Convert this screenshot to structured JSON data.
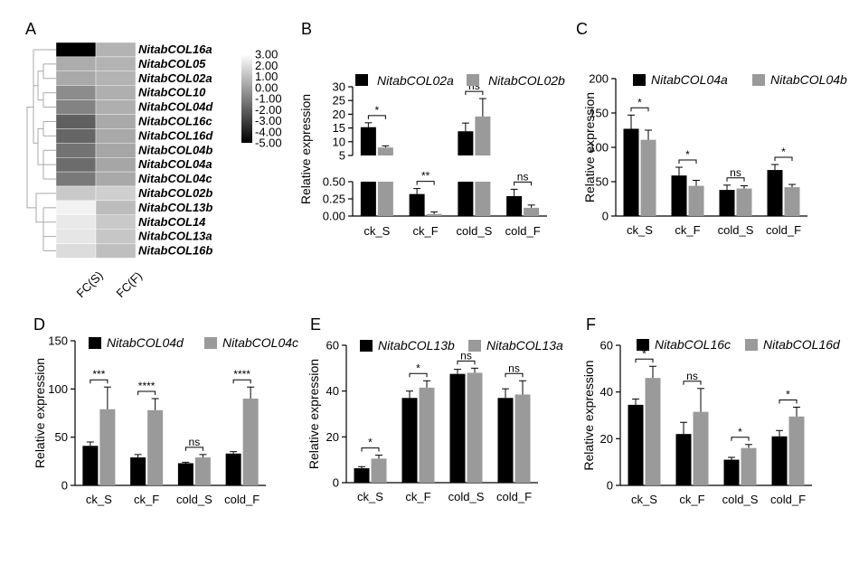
{
  "panel_labels": [
    "A",
    "B",
    "C",
    "D",
    "E",
    "F"
  ],
  "colors": {
    "series_a": "#000000",
    "series_b": "#9a9a9b",
    "axis": "#000000"
  },
  "chart_data": [
    {
      "panel": "A",
      "type": "heatmap",
      "rows": [
        "NitabCOL16a",
        "NitabCOL05",
        "NitabCOL02a",
        "NitabCOL10",
        "NitabCOL04d",
        "NitabCOL16c",
        "NitabCOL16d",
        "NitabCOL04b",
        "NitabCOL04a",
        "NitabCOL04c",
        "NitabCOL02b",
        "NitabCOL13b",
        "NitabCOL14",
        "NitabCOL13a",
        "NitabCOL16b"
      ],
      "columns": [
        "FC(S)",
        "FC(F)"
      ],
      "values": [
        [
          -5.0,
          0.6
        ],
        [
          0.4,
          0.6
        ],
        [
          0.3,
          0.6
        ],
        [
          -0.6,
          0.5
        ],
        [
          -0.9,
          0.5
        ],
        [
          -2.0,
          0.3
        ],
        [
          -1.8,
          0.3
        ],
        [
          -1.4,
          0.2
        ],
        [
          -1.6,
          0.2
        ],
        [
          -1.2,
          0.3
        ],
        [
          1.3,
          1.5
        ],
        [
          2.6,
          0.9
        ],
        [
          2.3,
          1.3
        ],
        [
          2.2,
          1.2
        ],
        [
          1.9,
          1.0
        ]
      ],
      "colorbar_ticks": [
        "3.00",
        "2.00",
        "1.00",
        "0.00",
        "-1.00",
        "-2.00",
        "-3.00",
        "-4.00",
        "-5.00"
      ],
      "color_range": [
        -5.0,
        3.0
      ]
    },
    {
      "panel": "B",
      "type": "bar",
      "categories": [
        "ck_S",
        "ck_F",
        "cold_S",
        "cold_F"
      ],
      "series": [
        {
          "name": "NitabCOL02a",
          "values": [
            15.3,
            0.32,
            13.8,
            0.29
          ],
          "errors": [
            1.6,
            0.08,
            3.0,
            0.1
          ]
        },
        {
          "name": "NitabCOL02b",
          "values": [
            7.9,
            0.03,
            19.2,
            0.12
          ],
          "errors": [
            0.6,
            0.03,
            6.5,
            0.04
          ]
        }
      ],
      "ylabel": "Relative expression",
      "broken_axis": {
        "lower": [
          0,
          0.5
        ],
        "upper": [
          5,
          30
        ]
      },
      "yticks_lower": [
        "0.00",
        "0.25",
        "0.50"
      ],
      "yticks_upper": [
        "5",
        "10",
        "15",
        "20",
        "25",
        "30"
      ],
      "significance": [
        "*",
        "**",
        "ns",
        "ns"
      ]
    },
    {
      "panel": "C",
      "type": "bar",
      "categories": [
        "ck_S",
        "ck_F",
        "cold_S",
        "cold_F"
      ],
      "series": [
        {
          "name": "NitabCOL04a",
          "values": [
            127,
            59,
            38,
            67
          ],
          "errors": [
            20,
            12,
            7,
            8
          ]
        },
        {
          "name": "NitabCOL04b",
          "values": [
            111,
            44,
            40,
            42
          ],
          "errors": [
            14,
            8,
            4,
            4
          ]
        }
      ],
      "ylabel": "Relative expression",
      "ylim": [
        0,
        200
      ],
      "yticks": [
        "0",
        "50",
        "100",
        "150",
        "200"
      ],
      "significance": [
        "*",
        "*",
        "ns",
        "*"
      ]
    },
    {
      "panel": "D",
      "type": "bar",
      "categories": [
        "ck_S",
        "ck_F",
        "cold_S",
        "cold_F"
      ],
      "series": [
        {
          "name": "NitabCOL04d",
          "values": [
            41,
            29,
            23,
            33
          ],
          "errors": [
            4,
            3,
            1,
            2
          ]
        },
        {
          "name": "NitabCOL04c",
          "values": [
            79,
            78,
            29,
            90
          ],
          "errors": [
            23,
            12,
            3,
            12
          ]
        }
      ],
      "ylabel": "Relative expression",
      "ylim": [
        0,
        150
      ],
      "yticks": [
        "0",
        "50",
        "100",
        "150"
      ],
      "significance": [
        "***",
        "****",
        "ns",
        "****"
      ]
    },
    {
      "panel": "E",
      "type": "bar",
      "categories": [
        "ck_S",
        "ck_F",
        "cold_S",
        "cold_F"
      ],
      "series": [
        {
          "name": "NitabCOL13b",
          "values": [
            6.3,
            37,
            47.5,
            37
          ],
          "errors": [
            0.7,
            3,
            2,
            4
          ]
        },
        {
          "name": "NitabCOL13a",
          "values": [
            10.5,
            41.5,
            48,
            38.5
          ],
          "errors": [
            1.5,
            3,
            2,
            6
          ]
        }
      ],
      "ylabel": "Relative expression",
      "ylim": [
        0,
        60
      ],
      "yticks": [
        "0",
        "20",
        "40",
        "60"
      ],
      "significance": [
        "*",
        "*",
        "ns",
        "ns"
      ]
    },
    {
      "panel": "F",
      "type": "bar",
      "categories": [
        "ck_S",
        "ck_F",
        "cold_S",
        "cold_F"
      ],
      "series": [
        {
          "name": "NitabCOL16c",
          "values": [
            34.5,
            22,
            11,
            21
          ],
          "errors": [
            2.5,
            5,
            1,
            2.5
          ]
        },
        {
          "name": "NitabCOL16d",
          "values": [
            46,
            31.5,
            16,
            29.5
          ],
          "errors": [
            5,
            10,
            1.5,
            4
          ]
        }
      ],
      "ylabel": "Relative expression",
      "ylim": [
        0,
        60
      ],
      "yticks": [
        "0",
        "20",
        "40",
        "60"
      ],
      "significance": [
        "*",
        "ns",
        "*",
        "*"
      ]
    }
  ]
}
